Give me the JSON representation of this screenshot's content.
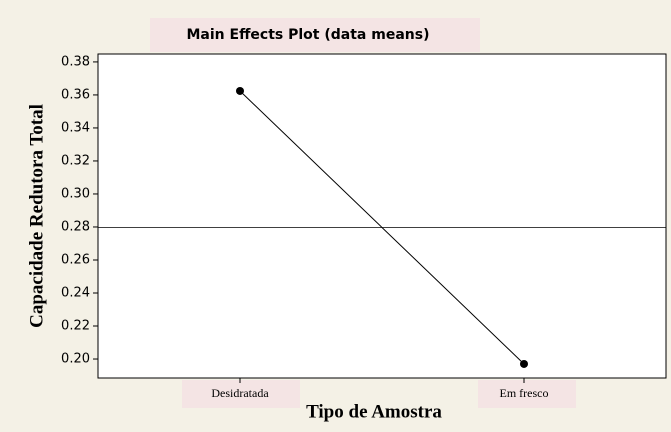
{
  "chart_data": {
    "type": "line",
    "title": "Main Effects Plot (data means)",
    "x_label": "Tipo de Amostra",
    "y_label": "Capacidade Redutora Total",
    "categories": [
      "Desidratada",
      "Em fresco"
    ],
    "values": [
      0.3624,
      0.197
    ],
    "color": "#000000",
    "mean_line": 0.2797,
    "ylim": [
      0.1885,
      0.3848
    ],
    "yticks": [
      {
        "value": 0.2,
        "label": "0.20"
      },
      0.22,
      0.24,
      0.26,
      0.28,
      {
        "value": 0.3,
        "label": "0.30"
      },
      0.32,
      0.34,
      0.36,
      0.38
    ]
  }
}
